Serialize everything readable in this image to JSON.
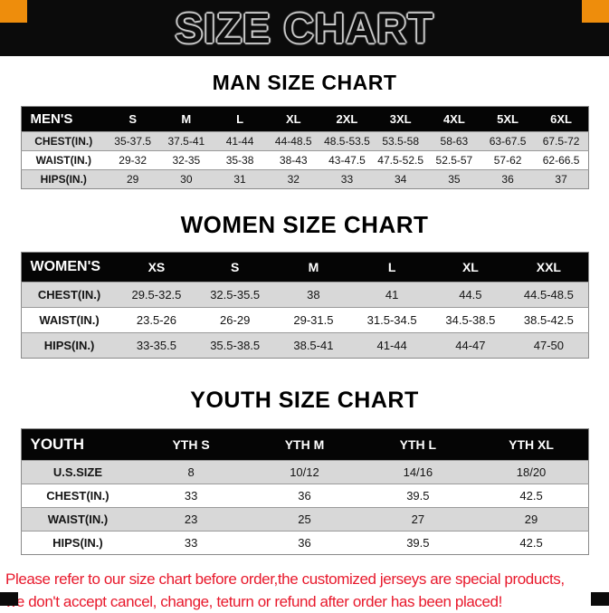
{
  "banner": {
    "title": "SIZE CHART"
  },
  "chart_data": [
    {
      "type": "table",
      "title": "MAN SIZE CHART",
      "columns": [
        "MEN'S",
        "S",
        "M",
        "L",
        "XL",
        "2XL",
        "3XL",
        "4XL",
        "5XL",
        "6XL"
      ],
      "rows": [
        [
          "CHEST(IN.)",
          "35-37.5",
          "37.5-41",
          "41-44",
          "44-48.5",
          "48.5-53.5",
          "53.5-58",
          "58-63",
          "63-67.5",
          "67.5-72"
        ],
        [
          "WAIST(IN.)",
          "29-32",
          "32-35",
          "35-38",
          "38-43",
          "43-47.5",
          "47.5-52.5",
          "52.5-57",
          "57-62",
          "62-66.5"
        ],
        [
          "HIPS(IN.)",
          "29",
          "30",
          "31",
          "32",
          "33",
          "34",
          "35",
          "36",
          "37"
        ]
      ]
    },
    {
      "type": "table",
      "title": "WOMEN SIZE CHART",
      "columns": [
        "WOMEN'S",
        "XS",
        "S",
        "M",
        "L",
        "XL",
        "XXL"
      ],
      "rows": [
        [
          "CHEST(IN.)",
          "29.5-32.5",
          "32.5-35.5",
          "38",
          "41",
          "44.5",
          "44.5-48.5"
        ],
        [
          "WAIST(IN.)",
          "23.5-26",
          "26-29",
          "29-31.5",
          "31.5-34.5",
          "34.5-38.5",
          "38.5-42.5"
        ],
        [
          "HIPS(IN.)",
          "33-35.5",
          "35.5-38.5",
          "38.5-41",
          "41-44",
          "44-47",
          "47-50"
        ]
      ]
    },
    {
      "type": "table",
      "title": "YOUTH SIZE CHART",
      "columns": [
        "YOUTH",
        "YTH S",
        "YTH M",
        "YTH L",
        "YTH XL"
      ],
      "rows": [
        [
          "U.S.SIZE",
          "8",
          "10/12",
          "14/16",
          "18/20"
        ],
        [
          "CHEST(IN.)",
          "33",
          "36",
          "39.5",
          "42.5"
        ],
        [
          "WAIST(IN.)",
          "23",
          "25",
          "27",
          "29"
        ],
        [
          "HIPS(IN.)",
          "33",
          "36",
          "39.5",
          "42.5"
        ]
      ]
    }
  ],
  "footer": {
    "lines": [
      "Please refer to our size chart before order,the customized jerseys are special products,",
      "we don't accept cancel, change, teturn or refund after order has been placed!"
    ]
  },
  "colors": {
    "accent": "#EE8D0C",
    "banner-bg": "#0B0B0B",
    "header-bg": "#050505",
    "row-gray": "#D8D8D8",
    "notice-red": "#E8192C"
  }
}
